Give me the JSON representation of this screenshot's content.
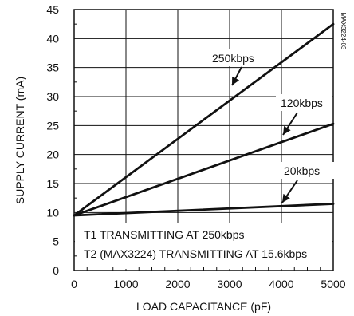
{
  "chart_data": {
    "type": "line",
    "title": "",
    "xlabel": "LOAD CAPACITANCE (pF)",
    "ylabel": "SUPPLY CURRENT (mA)",
    "xlim": [
      0,
      5000
    ],
    "ylim": [
      0,
      45
    ],
    "x_ticks": [
      0,
      1000,
      2000,
      3000,
      4000,
      5000
    ],
    "y_ticks": [
      0,
      5,
      10,
      15,
      20,
      25,
      30,
      35,
      40,
      45
    ],
    "x_tick_labels": [
      "0",
      "1000",
      "2000",
      "3000",
      "4000",
      "5000"
    ],
    "y_tick_labels": [
      "0",
      "5",
      "10",
      "15",
      "20",
      "25",
      "30",
      "35",
      "40",
      "45"
    ],
    "grid": true,
    "series": [
      {
        "name": "250kbps",
        "x": [
          0,
          5000
        ],
        "y": [
          9.5,
          42.5
        ]
      },
      {
        "name": "120kbps",
        "x": [
          0,
          5000
        ],
        "y": [
          9.5,
          25.3
        ]
      },
      {
        "name": "20kbps",
        "x": [
          0,
          5000
        ],
        "y": [
          9.5,
          11.5
        ]
      }
    ],
    "annotations": [
      "T1 TRANSMITTING AT 250kbps",
      "T2 (MAX3224) TRANSMITTING AT 15.6kbps"
    ],
    "figure_code": "MAX3224-03",
    "colors": {
      "line": "#111111",
      "grid": "#111111",
      "background": "#ffffff"
    }
  }
}
